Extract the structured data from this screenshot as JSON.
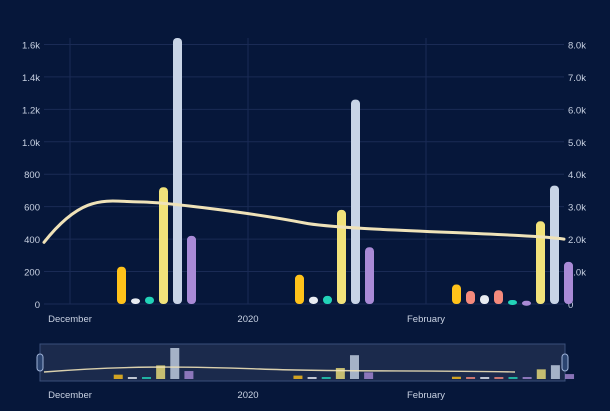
{
  "chart_data": {
    "type": "bar",
    "x_labels": [
      "December",
      "2020",
      "February"
    ],
    "left_axis": {
      "ticks": [
        "0",
        "200",
        "400",
        "600",
        "800",
        "1.0k",
        "1.2k",
        "1.4k",
        "1.6k"
      ],
      "min": 0,
      "max": 1640
    },
    "right_axis": {
      "ticks": [
        "0",
        "1.0k",
        "2.0k",
        "3.0k",
        "4.0k",
        "5.0k",
        "6.0k",
        "7.0k",
        "8.0k"
      ],
      "min": 0,
      "max": 8200
    },
    "groups": [
      {
        "x": "December",
        "bars": [
          {
            "value": 230,
            "color": "#ffc21a"
          },
          {
            "value": 35,
            "color": "#e8ecf2"
          },
          {
            "value": 45,
            "color": "#22d3b8"
          },
          {
            "value": 720,
            "color": "#f1e27a"
          },
          {
            "value": 1640,
            "color": "#c8d4e6"
          },
          {
            "value": 420,
            "color": "#a98ad6"
          }
        ]
      },
      {
        "x": "2020",
        "bars": [
          {
            "value": 180,
            "color": "#ffc21a"
          },
          {
            "value": 45,
            "color": "#e8ecf2"
          },
          {
            "value": 50,
            "color": "#22d3b8"
          },
          {
            "value": 580,
            "color": "#f1e27a"
          },
          {
            "value": 1260,
            "color": "#c8d4e6"
          },
          {
            "value": 350,
            "color": "#a98ad6"
          }
        ]
      },
      {
        "x": "February",
        "bars": [
          {
            "value": 120,
            "color": "#ffc21a"
          },
          {
            "value": 80,
            "color": "#f58a7c"
          },
          {
            "value": 55,
            "color": "#e8ecf2"
          },
          {
            "value": 85,
            "color": "#f58a7c"
          },
          {
            "value": 25,
            "color": "#22d3b8"
          },
          {
            "value": 20,
            "color": "#a98ad6"
          },
          {
            "value": 510,
            "color": "#f1e27a"
          },
          {
            "value": 730,
            "color": "#c8d4e6"
          },
          {
            "value": 260,
            "color": "#a98ad6"
          }
        ]
      }
    ],
    "line": {
      "axis": "right",
      "color": "#efe2b8",
      "points": [
        [
          0,
          1900
        ],
        [
          0.18,
          3150
        ],
        [
          0.5,
          2500
        ],
        [
          1,
          2000
        ]
      ]
    }
  },
  "navigator": {
    "labels": [
      "December",
      "2020",
      "February"
    ]
  },
  "colors": {
    "background": "#06173a",
    "grid": "#1a2b55",
    "text": "#c9d2e3"
  }
}
